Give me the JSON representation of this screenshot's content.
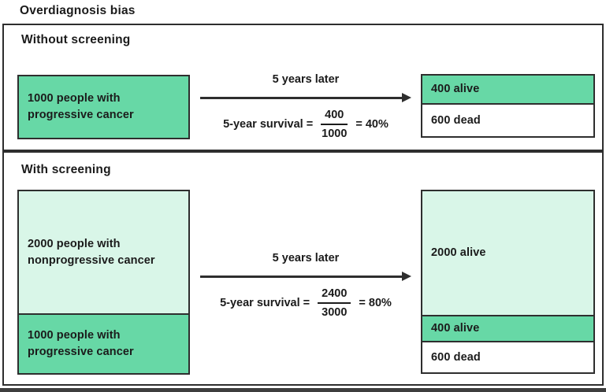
{
  "title": "Overdiagnosis bias",
  "colors": {
    "green": "#67d8a6",
    "pale": "#d9f6e8",
    "white": "#ffffff",
    "border": "#2e2e2e",
    "text": "#1b1b1b",
    "bottom_bar": "#3e3e3e"
  },
  "panels": [
    {
      "label": "Without screening",
      "left_box": {
        "segments": [
          {
            "line1": "1000 people with",
            "line2": "progressive cancer",
            "fill": "green"
          }
        ]
      },
      "arrow_label": "5 years later",
      "formula": {
        "lhs": "5-year survival =",
        "numerator": "400",
        "denominator": "1000",
        "result": "= 40%"
      },
      "right_box": {
        "segments": [
          {
            "text": "400 alive",
            "fill": "green"
          },
          {
            "text": "600 dead",
            "fill": "white"
          }
        ]
      }
    },
    {
      "label": "With screening",
      "left_box": {
        "segments": [
          {
            "line1": "2000 people with",
            "line2": "nonprogressive cancer",
            "fill": "pale"
          },
          {
            "line1": "1000 people with",
            "line2": "progressive cancer",
            "fill": "green"
          }
        ]
      },
      "arrow_label": "5 years later",
      "formula": {
        "lhs": "5-year survival =",
        "numerator": "2400",
        "denominator": "3000",
        "result": "= 80%"
      },
      "right_box": {
        "segments": [
          {
            "text": "2000 alive",
            "fill": "pale"
          },
          {
            "text": "400 alive",
            "fill": "green"
          },
          {
            "text": "600 dead",
            "fill": "white"
          }
        ]
      }
    }
  ]
}
